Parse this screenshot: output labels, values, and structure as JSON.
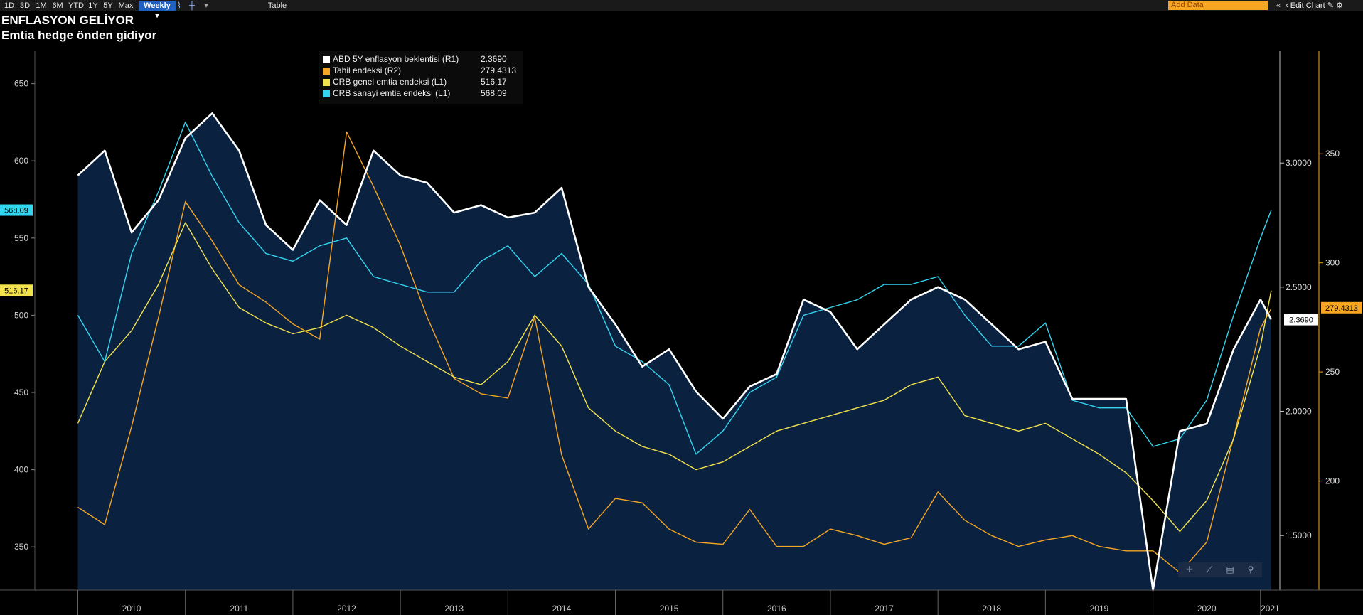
{
  "toolbar": {
    "periods": [
      "1D",
      "3D",
      "1M",
      "6M",
      "YTD",
      "1Y",
      "5Y",
      "Max"
    ],
    "frequency": "Weekly",
    "table_label": "Table",
    "add_data_placeholder": "Add Data",
    "edit_chart_label": "Edit Chart"
  },
  "title": "ENFLASYON GELİYOR",
  "subtitle": "Emtia hedge önden gidiyor",
  "legend": [
    {
      "name": "ABD 5Y enflasyon beklentisi (R1)",
      "value": "2.3690",
      "color": "#ffffff"
    },
    {
      "name": "Tahil endeksi (R2)",
      "value": "279.4313",
      "color": "#f5a623"
    },
    {
      "name": "CRB genel emtia endeksi (L1)",
      "value": "516.17",
      "color": "#f2e34c"
    },
    {
      "name": "CRB sanayi emtia endeksi (L1)",
      "value": "568.09",
      "color": "#33d6f0"
    }
  ],
  "chart_data": {
    "type": "line",
    "x": [
      2010.0,
      2010.25,
      2010.5,
      2010.75,
      2011.0,
      2011.25,
      2011.5,
      2011.75,
      2012.0,
      2012.25,
      2012.5,
      2012.75,
      2013.0,
      2013.25,
      2013.5,
      2013.75,
      2014.0,
      2014.25,
      2014.5,
      2014.75,
      2015.0,
      2015.25,
      2015.5,
      2015.75,
      2016.0,
      2016.25,
      2016.5,
      2016.75,
      2017.0,
      2017.25,
      2017.5,
      2017.75,
      2018.0,
      2018.25,
      2018.5,
      2018.75,
      2019.0,
      2019.25,
      2019.5,
      2019.75,
      2020.0,
      2020.25,
      2020.5,
      2020.75,
      2021.0,
      2021.1
    ],
    "xlabels": [
      "2010",
      "2011",
      "2012",
      "2013",
      "2014",
      "2015",
      "2016",
      "2017",
      "2018",
      "2019",
      "2020",
      "2021"
    ],
    "axes": {
      "left": {
        "ticks": [
          650,
          600,
          550,
          500,
          450,
          400,
          350
        ],
        "range": [
          322,
          671
        ]
      },
      "right1": {
        "ticks": [
          "3.0000",
          "2.5000",
          "2.0000",
          "1.5000"
        ],
        "range": [
          1.28,
          3.45
        ]
      },
      "right2": {
        "ticks": [
          350,
          300,
          250,
          200
        ],
        "range": [
          150,
          397
        ]
      }
    },
    "series": [
      {
        "name": "ABD 5Y enflasyon beklentisi (R1)",
        "axis": "right1",
        "color": "#ffffff",
        "area": true,
        "values": [
          2.95,
          3.05,
          2.72,
          2.85,
          3.1,
          3.2,
          3.05,
          2.75,
          2.65,
          2.85,
          2.75,
          3.05,
          2.95,
          2.92,
          2.8,
          2.83,
          2.78,
          2.8,
          2.9,
          2.5,
          2.35,
          2.18,
          2.25,
          2.08,
          1.97,
          2.1,
          2.15,
          2.45,
          2.4,
          2.25,
          2.35,
          2.45,
          2.5,
          2.45,
          2.35,
          2.25,
          2.28,
          2.05,
          2.05,
          2.05,
          1.28,
          1.92,
          1.95,
          2.25,
          2.45,
          2.37
        ]
      },
      {
        "name": "Tahil endeksi (R2)",
        "axis": "right2",
        "color": "#f5a623",
        "area": false,
        "values": [
          188,
          180,
          225,
          275,
          328,
          310,
          290,
          282,
          272,
          265,
          360,
          335,
          308,
          275,
          247,
          240,
          238,
          275,
          212,
          178,
          192,
          190,
          178,
          172,
          171,
          187,
          170,
          170,
          178,
          175,
          171,
          174,
          195,
          182,
          175,
          170,
          173,
          175,
          170,
          168,
          168,
          158,
          172,
          220,
          270,
          279
        ]
      },
      {
        "name": "CRB genel emtia endeksi (L1)",
        "axis": "left",
        "color": "#f2e34c",
        "area": false,
        "values": [
          430,
          470,
          490,
          520,
          560,
          530,
          505,
          495,
          488,
          492,
          500,
          492,
          480,
          470,
          460,
          455,
          470,
          500,
          480,
          440,
          425,
          415,
          410,
          400,
          405,
          415,
          425,
          430,
          435,
          440,
          445,
          455,
          460,
          435,
          430,
          425,
          430,
          420,
          410,
          398,
          380,
          360,
          380,
          420,
          480,
          516
        ]
      },
      {
        "name": "CRB sanayi emtia endeksi (L1)",
        "axis": "left",
        "color": "#33d6f0",
        "area": false,
        "values": [
          500,
          470,
          540,
          580,
          625,
          590,
          560,
          540,
          535,
          545,
          550,
          525,
          520,
          515,
          515,
          535,
          545,
          525,
          540,
          520,
          480,
          470,
          455,
          410,
          425,
          450,
          460,
          500,
          505,
          510,
          520,
          520,
          525,
          500,
          480,
          480,
          495,
          445,
          440,
          440,
          415,
          420,
          445,
          500,
          550,
          568
        ]
      }
    ]
  }
}
